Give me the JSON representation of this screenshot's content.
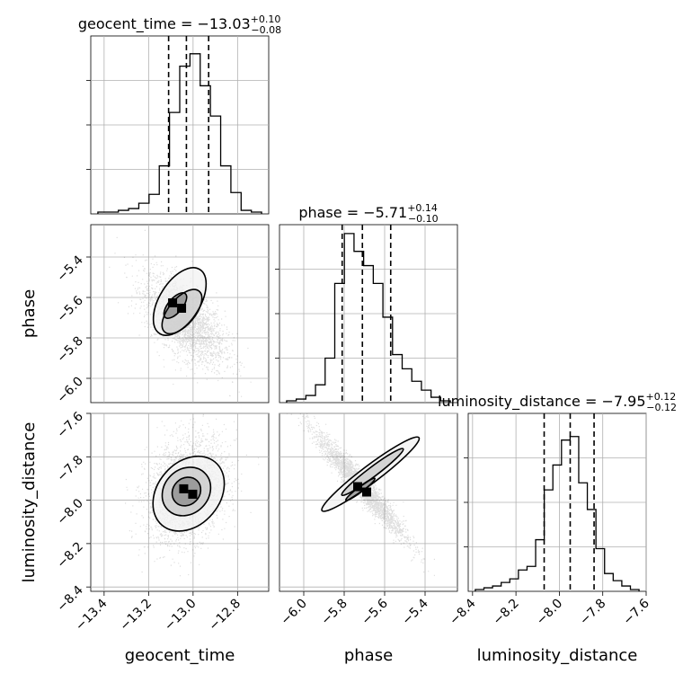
{
  "chart_data": {
    "type": "corner",
    "parameters": [
      {
        "name": "geocent_time",
        "range": [
          -13.46,
          -12.66
        ],
        "median": -13.03,
        "plus": "0.10",
        "minus": "0.08",
        "median_text": "−13.03",
        "plus_text": "+0.10",
        "minus_text": "−0.08",
        "ticks": [
          -13.4,
          -13.2,
          -13.0,
          -12.8
        ],
        "tick_labels": [
          "−13.4",
          "−13.2",
          "−13.0",
          "−12.8"
        ],
        "quantiles": [
          -13.11,
          -13.03,
          -12.93
        ],
        "hist": [
          0.01,
          0.01,
          0.02,
          0.03,
          0.06,
          0.11,
          0.27,
          0.57,
          0.83,
          0.9,
          0.72,
          0.55,
          0.27,
          0.12,
          0.02,
          0.01
        ]
      },
      {
        "name": "phase",
        "range": [
          -6.12,
          -5.24
        ],
        "median": -5.71,
        "plus": "0.14",
        "minus": "0.10",
        "median_text": "−5.71",
        "plus_text": "+0.14",
        "minus_text": "−0.10",
        "ticks": [
          -6.0,
          -5.8,
          -5.6,
          -5.4
        ],
        "tick_labels": [
          "−6.0",
          "−5.8",
          "−5.6",
          "−5.4"
        ],
        "quantiles": [
          -5.81,
          -5.71,
          -5.57
        ],
        "hist": [
          0.01,
          0.02,
          0.04,
          0.1,
          0.25,
          0.67,
          0.95,
          0.85,
          0.77,
          0.67,
          0.48,
          0.27,
          0.19,
          0.12,
          0.07,
          0.03,
          0.01
        ]
      },
      {
        "name": "luminosity_distance",
        "range": [
          -8.42,
          -7.6
        ],
        "median": -7.95,
        "plus": "0.12",
        "minus": "0.12",
        "median_text": "−7.95",
        "plus_text": "+0.12",
        "minus_text": "−0.12",
        "ticks": [
          -8.4,
          -8.2,
          -8.0,
          -7.8,
          -7.6
        ],
        "tick_labels": [
          "−8.4",
          "−8.2",
          "−8.0",
          "−7.8",
          "−7.6"
        ],
        "quantiles": [
          -8.07,
          -7.95,
          -7.84
        ],
        "hist": [
          0.01,
          0.02,
          0.03,
          0.05,
          0.07,
          0.12,
          0.14,
          0.29,
          0.57,
          0.71,
          0.85,
          0.87,
          0.61,
          0.46,
          0.24,
          0.1,
          0.06,
          0.03,
          0.01
        ]
      }
    ],
    "pairs": [
      {
        "x": "geocent_time",
        "y": "phase",
        "mean": [
          -13.04,
          -5.71
        ],
        "sd": [
          0.09,
          0.11
        ],
        "corr": -0.6,
        "contours": [
          [
            -13.08,
            -5.64,
            0.07,
            0.035,
            -50
          ],
          [
            -13.05,
            -5.67,
            0.12,
            0.065,
            -50
          ],
          [
            -13.06,
            -5.62,
            0.17,
            0.1,
            -58
          ]
        ]
      },
      {
        "x": "geocent_time",
        "y": "luminosity_distance",
        "mean": [
          -13.03,
          -7.95
        ],
        "sd": [
          0.09,
          0.12
        ],
        "corr": 0.25,
        "contours": [
          [
            -13.03,
            -7.96,
            0.06,
            0.07,
            45
          ],
          [
            -13.03,
            -7.96,
            0.1,
            0.12,
            45
          ],
          [
            -13.02,
            -7.97,
            0.14,
            0.19,
            40
          ]
        ]
      },
      {
        "x": "phase",
        "y": "luminosity_distance",
        "mean": [
          -5.72,
          -7.93
        ],
        "sd": [
          0.11,
          0.12
        ],
        "corr": -0.96,
        "contours": [
          [
            -5.72,
            -7.95,
            0.09,
            0.012,
            -37
          ],
          [
            -5.66,
            -7.87,
            0.19,
            0.022,
            -37
          ],
          [
            -5.67,
            -7.88,
            0.3,
            0.04,
            -37
          ]
        ]
      }
    ]
  }
}
